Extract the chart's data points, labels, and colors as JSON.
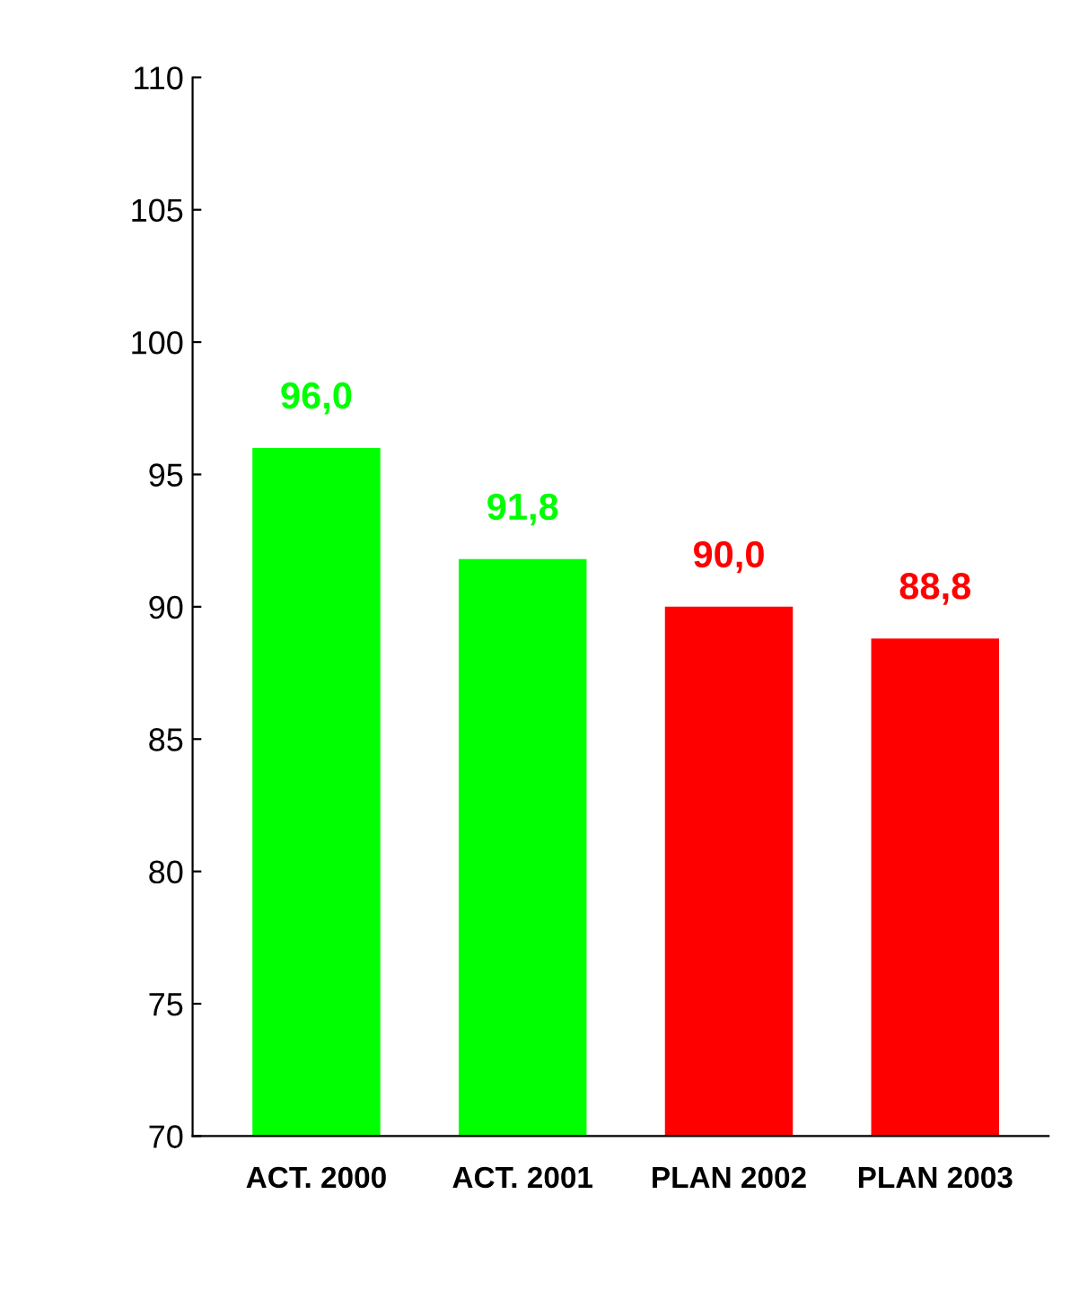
{
  "chart_data": {
    "type": "bar",
    "categories": [
      "ACT. 2000",
      "ACT. 2001",
      "PLAN 2002",
      "PLAN 2003"
    ],
    "values": [
      96.0,
      91.8,
      90.0,
      88.8
    ],
    "colors": [
      "#00ff00",
      "#00ff00",
      "#ff0000",
      "#ff0000"
    ],
    "value_labels": [
      "96,0",
      "91,8",
      "90,0",
      "88,8"
    ],
    "ylim": [
      70,
      110
    ],
    "yticks": [
      70,
      75,
      80,
      85,
      90,
      95,
      100,
      105,
      110
    ],
    "grid": false,
    "legend": false
  }
}
